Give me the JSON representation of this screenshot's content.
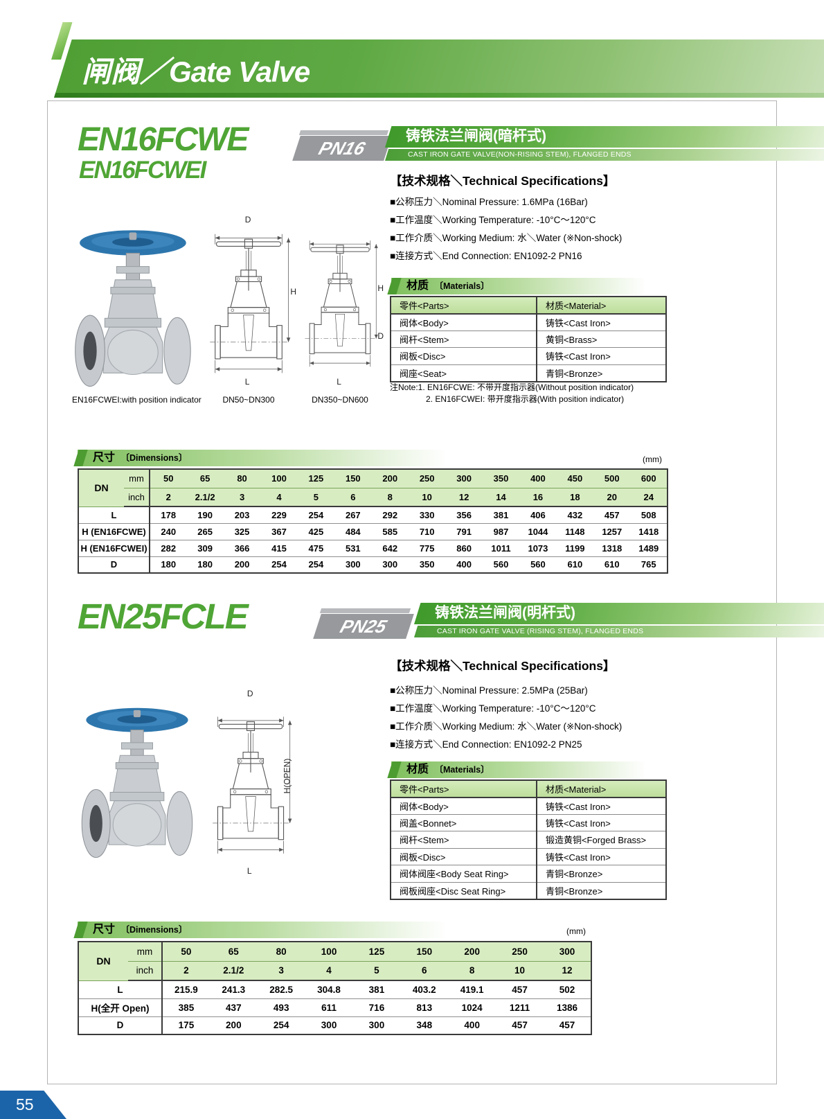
{
  "page_header": {
    "title_zh": "闸阀",
    "divider": "／",
    "title_en": "Gate Valve"
  },
  "page_number": "55",
  "s1": {
    "model": "EN16FCWE",
    "model_sub": "EN16FCWEI",
    "pn_badge": "PN16",
    "banner_zh": "铸铁法兰闸阀(暗杆式)",
    "banner_en": "CAST IRON GATE VALVE(NON-RISING STEM), FLANGED ENDS",
    "spec_title": "【技术规格＼Technical Specifications】",
    "specs": [
      "■公称压力＼Nominal Pressure: 1.6MPa (16Bar)",
      "■工作温度＼Working Temperature: -10°C～120°C",
      "■工作介质＼Working Medium: 水＼Water (※Non-shock)",
      "■连接方式＼End Connection: EN1092-2 PN16"
    ],
    "materials": {
      "title_zh": "材质",
      "title_suffix": "〔Materials〕",
      "headers": [
        "零件<Parts>",
        "材质<Material>"
      ],
      "rows": [
        [
          "阀体<Body>",
          "铸铁<Cast Iron>"
        ],
        [
          "阀杆<Stem>",
          "黄铜<Brass>"
        ],
        [
          "阀板<Disc>",
          "铸铁<Cast Iron>"
        ],
        [
          "阀座<Seat>",
          "青铜<Bronze>"
        ]
      ]
    },
    "notes": [
      "注Note:1. EN16FCWE: 不带开度指示器(Without position indicator)",
      "2. EN16FCWEI: 带开度指示器(With position indicator)"
    ],
    "photo_caption": "EN16FCWEI:with position indicator",
    "drawing1": {
      "caption": "DN50~DN300",
      "label_top": "D",
      "label_right": "H",
      "label_bottom": "L"
    },
    "drawing2": {
      "caption": "DN350~DN600",
      "label_right": "H",
      "label_right2": "D",
      "label_bottom": "L"
    },
    "dim": {
      "title_zh": "尺寸",
      "title_suffix": "〔Dimensions〕",
      "unit": "(mm)",
      "dn_label": "DN",
      "mm_label": "mm",
      "inch_label": "inch",
      "mm": [
        "50",
        "65",
        "80",
        "100",
        "125",
        "150",
        "200",
        "250",
        "300",
        "350",
        "400",
        "450",
        "500",
        "600"
      ],
      "inch": [
        "2",
        "2.1/2",
        "3",
        "4",
        "5",
        "6",
        "8",
        "10",
        "12",
        "14",
        "16",
        "18",
        "20",
        "24"
      ],
      "rows": [
        [
          "L",
          "178",
          "190",
          "203",
          "229",
          "254",
          "267",
          "292",
          "330",
          "356",
          "381",
          "406",
          "432",
          "457",
          "508"
        ],
        [
          "H (EN16FCWE)",
          "240",
          "265",
          "325",
          "367",
          "425",
          "484",
          "585",
          "710",
          "791",
          "987",
          "1044",
          "1148",
          "1257",
          "1418"
        ],
        [
          "H (EN16FCWEI)",
          "282",
          "309",
          "366",
          "415",
          "475",
          "531",
          "642",
          "775",
          "860",
          "1011",
          "1073",
          "1199",
          "1318",
          "1489"
        ],
        [
          "D",
          "180",
          "180",
          "200",
          "254",
          "254",
          "300",
          "300",
          "350",
          "400",
          "560",
          "560",
          "610",
          "610",
          "765"
        ]
      ]
    }
  },
  "s2": {
    "model": "EN25FCLE",
    "pn_badge": "PN25",
    "banner_zh": "铸铁法兰闸阀(明杆式)",
    "banner_en": "CAST IRON GATE VALVE (RISING STEM), FLANGED ENDS",
    "spec_title": "【技术规格＼Technical Specifications】",
    "specs": [
      "■公称压力＼Nominal Pressure: 2.5MPa (25Bar)",
      "■工作温度＼Working Temperature: -10°C～120°C",
      "■工作介质＼Working Medium: 水＼Water (※Non-shock)",
      "■连接方式＼End Connection: EN1092-2 PN25"
    ],
    "materials": {
      "title_zh": "材质",
      "title_suffix": "〔Materials〕",
      "headers": [
        "零件<Parts>",
        "材质<Material>"
      ],
      "rows": [
        [
          "阀体<Body>",
          "铸铁<Cast Iron>"
        ],
        [
          "阀盖<Bonnet>",
          "铸铁<Cast Iron>"
        ],
        [
          "阀杆<Stem>",
          "锻造黄铜<Forged Brass>"
        ],
        [
          "阀板<Disc>",
          "铸铁<Cast Iron>"
        ],
        [
          "阀体阀座<Body Seat Ring>",
          "青铜<Bronze>"
        ],
        [
          "阀板阀座<Disc Seat Ring>",
          "青铜<Bronze>"
        ]
      ]
    },
    "drawing3": {
      "label_top": "D",
      "label_right": "H(OPEN)",
      "label_bottom": "L"
    },
    "dim": {
      "title_zh": "尺寸",
      "title_suffix": "〔Dimensions〕",
      "unit": "(mm)",
      "dn_label": "DN",
      "mm_label": "mm",
      "inch_label": "inch",
      "mm": [
        "50",
        "65",
        "80",
        "100",
        "125",
        "150",
        "200",
        "250",
        "300"
      ],
      "inch": [
        "2",
        "2.1/2",
        "3",
        "4",
        "5",
        "6",
        "8",
        "10",
        "12"
      ],
      "rows": [
        [
          "L",
          "215.9",
          "241.3",
          "282.5",
          "304.8",
          "381",
          "403.2",
          "419.1",
          "457",
          "502"
        ],
        [
          "H(全开 Open)",
          "385",
          "437",
          "493",
          "611",
          "716",
          "813",
          "1024",
          "1211",
          "1386"
        ],
        [
          "D",
          "175",
          "200",
          "254",
          "300",
          "300",
          "348",
          "400",
          "457",
          "457"
        ]
      ]
    }
  }
}
